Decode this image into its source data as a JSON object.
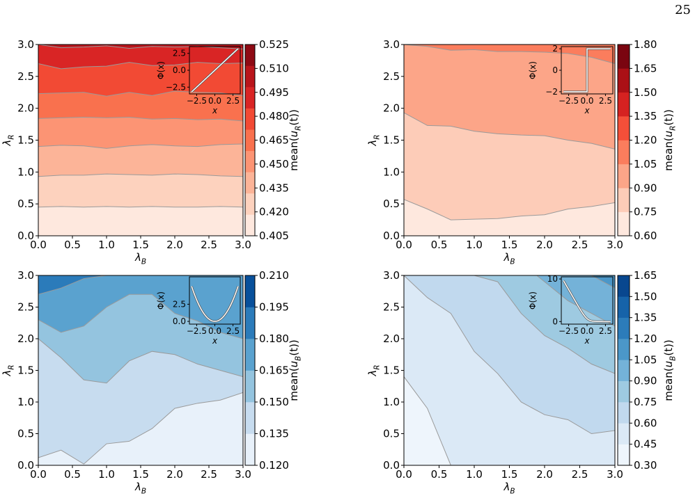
{
  "page": {
    "number": "25"
  },
  "colors": {
    "contour_line": "#9a9a9a",
    "axis": "#000000",
    "inset_curve": "#ffffff",
    "inset_curve_dark": "#555555"
  },
  "chart_data": [
    {
      "id": "top-left",
      "type": "contourf",
      "xlabel": "λB",
      "ylabel": "λR",
      "xlim": [
        0,
        3
      ],
      "ylim": [
        0,
        3
      ],
      "x_ticks": [
        "0.0",
        "0.5",
        "1.0",
        "1.5",
        "2.0",
        "2.5",
        "3.0"
      ],
      "y_ticks": [
        "0.0",
        "0.5",
        "1.0",
        "1.5",
        "2.0",
        "2.5",
        "3.0"
      ],
      "colorbar_label": "mean(uR(t))",
      "colorbar_ticks": [
        "0.405",
        "0.420",
        "0.435",
        "0.450",
        "0.465",
        "0.480",
        "0.495",
        "0.510",
        "0.525"
      ],
      "level_colors": [
        "#fee8de",
        "#fdd2be",
        "#fcb498",
        "#fc9474",
        "#f9714e",
        "#f24a34",
        "#d92525",
        "#b9151b",
        "#8e0a14"
      ],
      "x": [
        0,
        0.333,
        0.667,
        1.0,
        1.333,
        1.667,
        2.0,
        2.333,
        2.667,
        3.0
      ],
      "boundaries": [
        [
          0.45,
          0.46,
          0.45,
          0.46,
          0.45,
          0.46,
          0.45,
          0.45,
          0.46,
          0.45
        ],
        [
          0.93,
          0.95,
          0.95,
          0.97,
          0.96,
          0.95,
          0.97,
          0.96,
          0.94,
          0.93
        ],
        [
          1.4,
          1.42,
          1.41,
          1.37,
          1.41,
          1.43,
          1.41,
          1.4,
          1.43,
          1.44
        ],
        [
          1.84,
          1.85,
          1.86,
          1.85,
          1.86,
          1.83,
          1.84,
          1.82,
          1.83,
          1.8
        ],
        [
          2.23,
          2.24,
          2.25,
          2.19,
          2.25,
          2.2,
          2.27,
          2.25,
          2.24,
          2.2
        ],
        [
          2.7,
          2.62,
          2.65,
          2.66,
          2.72,
          2.67,
          2.68,
          2.72,
          2.7,
          2.71
        ],
        [
          3.0,
          2.95,
          2.96,
          2.98,
          2.94,
          2.97,
          2.96,
          2.97,
          2.95,
          2.93
        ]
      ],
      "inset": {
        "xlabel": "x",
        "ylabel": "Φ(x)",
        "x_ticks": [
          "−2.5",
          "0.0",
          "2.5"
        ],
        "y_ticks": [
          "−2.5",
          "0.0",
          "2.5"
        ],
        "xlim": [
          -3.5,
          3.5
        ],
        "ylim": [
          -3.5,
          3.5
        ],
        "curve": "identity"
      }
    },
    {
      "id": "top-right",
      "type": "contourf",
      "xlabel": "λB",
      "ylabel": "λR",
      "xlim": [
        0,
        3
      ],
      "ylim": [
        0,
        3
      ],
      "x_ticks": [
        "0.0",
        "0.5",
        "1.0",
        "1.5",
        "2.0",
        "2.5",
        "3.0"
      ],
      "y_ticks": [
        "0.0",
        "0.5",
        "1.0",
        "1.5",
        "2.0",
        "2.5",
        "3.0"
      ],
      "colorbar_label": "mean(uR(t))",
      "colorbar_ticks": [
        "0.60",
        "0.75",
        "0.90",
        "1.05",
        "1.20",
        "1.35",
        "1.50",
        "1.65",
        "1.80"
      ],
      "level_colors": [
        "#fee8de",
        "#fdccb8",
        "#fca588",
        "#fb7d5d",
        "#f44f39",
        "#d52221",
        "#ab1016",
        "#7a0510"
      ],
      "x": [
        0,
        0.333,
        0.667,
        1.0,
        1.333,
        1.667,
        2.0,
        2.333,
        2.667,
        3.0
      ],
      "boundaries": [
        [
          0.57,
          0.42,
          0.25,
          0.26,
          0.27,
          0.31,
          0.33,
          0.42,
          0.46,
          0.52
        ],
        [
          1.93,
          1.73,
          1.72,
          1.64,
          1.6,
          1.58,
          1.57,
          1.5,
          1.45,
          1.36
        ],
        [
          3.0,
          2.97,
          2.91,
          2.92,
          2.89,
          2.89,
          2.88,
          2.86,
          2.8,
          2.7
        ]
      ],
      "inset": {
        "xlabel": "x",
        "ylabel": "Φ(x)",
        "x_ticks": [
          "−2.5",
          "0.0",
          "2.5"
        ],
        "y_ticks": [
          "−2",
          "0",
          "2"
        ],
        "xlim": [
          -3.5,
          3.5
        ],
        "ylim": [
          -2.2,
          2.2
        ],
        "curve": "step"
      }
    },
    {
      "id": "bottom-left",
      "type": "contourf",
      "xlabel": "λB",
      "ylabel": "λR",
      "xlim": [
        0,
        3
      ],
      "ylim": [
        0,
        3
      ],
      "x_ticks": [
        "0.0",
        "0.5",
        "1.0",
        "1.5",
        "2.0",
        "2.5",
        "3.0"
      ],
      "y_ticks": [
        "0.0",
        "0.5",
        "1.0",
        "1.5",
        "2.0",
        "2.5",
        "3.0"
      ],
      "colorbar_label": "mean(uB(t))",
      "colorbar_ticks": [
        "0.120",
        "0.135",
        "0.150",
        "0.165",
        "0.180",
        "0.195",
        "0.210"
      ],
      "level_colors": [
        "#e8f1fa",
        "#c7dcef",
        "#94c4df",
        "#5aa2cf",
        "#2b7bba",
        "#08509b"
      ],
      "x": [
        0,
        0.333,
        0.667,
        1.0,
        1.333,
        1.667,
        2.0,
        2.333,
        2.667,
        3.0
      ],
      "boundaries": [
        [
          0.12,
          0.24,
          0.02,
          0.34,
          0.38,
          0.58,
          0.9,
          0.98,
          1.03,
          1.15
        ],
        [
          2.0,
          1.7,
          1.35,
          1.3,
          1.65,
          1.8,
          1.75,
          1.6,
          1.5,
          1.4
        ],
        [
          2.3,
          2.1,
          2.2,
          2.5,
          2.7,
          2.7,
          2.4,
          2.28,
          2.1,
          2.0
        ],
        [
          2.7,
          2.8,
          2.95,
          3.0,
          3.0,
          3.0,
          3.0,
          3.0,
          3.0,
          3.0
        ]
      ],
      "inset": {
        "xlabel": "x",
        "ylabel": "Φ(x)",
        "x_ticks": [
          "−2.5",
          "0.0",
          "2.5"
        ],
        "y_ticks": [
          "0.0",
          "2.5"
        ],
        "xlim": [
          -3.5,
          3.5
        ],
        "ylim": [
          -0.4,
          6.5
        ],
        "curve": "parabola"
      }
    },
    {
      "id": "bottom-right",
      "type": "contourf",
      "xlabel": "λB",
      "ylabel": "λR",
      "xlim": [
        0,
        3
      ],
      "ylim": [
        0,
        3
      ],
      "x_ticks": [
        "0.0",
        "0.5",
        "1.0",
        "1.5",
        "2.0",
        "2.5",
        "3.0"
      ],
      "y_ticks": [
        "0.0",
        "0.5",
        "1.0",
        "1.5",
        "2.0",
        "2.5",
        "3.0"
      ],
      "colorbar_label": "mean(uB(t))",
      "colorbar_ticks": [
        "0.30",
        "0.45",
        "0.60",
        "0.75",
        "0.90",
        "1.05",
        "1.20",
        "1.35",
        "1.50",
        "1.65"
      ],
      "level_colors": [
        "#eef5fc",
        "#dbe9f6",
        "#c1d9ee",
        "#9ecae1",
        "#74b2d8",
        "#4b97c9",
        "#2c7cba",
        "#1663a9",
        "#08478f"
      ],
      "x": [
        0,
        0.333,
        0.667,
        1.0,
        1.333,
        1.667,
        2.0,
        2.333,
        2.667,
        3.0
      ],
      "boundaries": [
        [
          1.4,
          0.9,
          0.0,
          -0.2,
          -0.3,
          -0.3,
          -0.3,
          -0.3,
          -0.3,
          -0.3
        ],
        [
          3.0,
          2.65,
          2.4,
          1.8,
          1.45,
          1.0,
          0.8,
          0.72,
          0.5,
          0.55
        ],
        [
          4.0,
          3.6,
          3.2,
          3.0,
          2.9,
          2.4,
          2.05,
          1.85,
          1.6,
          1.45
        ],
        [
          4.0,
          4.0,
          4.0,
          4.0,
          4.0,
          3.2,
          2.9,
          2.6,
          2.4,
          2.2
        ],
        [
          4.0,
          4.0,
          4.0,
          4.0,
          4.0,
          4.0,
          3.4,
          3.2,
          3.0,
          2.8
        ],
        [
          4.0,
          4.0,
          4.0,
          4.0,
          4.0,
          4.0,
          4.0,
          3.6,
          3.2,
          3.0
        ],
        [
          4.0,
          4.0,
          4.0,
          4.0,
          4.0,
          4.0,
          4.0,
          4.0,
          3.4,
          3.2
        ],
        [
          4.0,
          4.0,
          4.0,
          4.0,
          4.0,
          4.0,
          4.0,
          4.0,
          3.8,
          3.4
        ]
      ],
      "inset": {
        "xlabel": "x",
        "ylabel": "Φ(x)",
        "x_ticks": [
          "−2.5",
          "0.0",
          "2.5"
        ],
        "y_ticks": [
          "0",
          "10"
        ],
        "xlim": [
          -3.5,
          3.5
        ],
        "ylim": [
          -0.6,
          10.5
        ],
        "curve": "softplus"
      }
    }
  ]
}
